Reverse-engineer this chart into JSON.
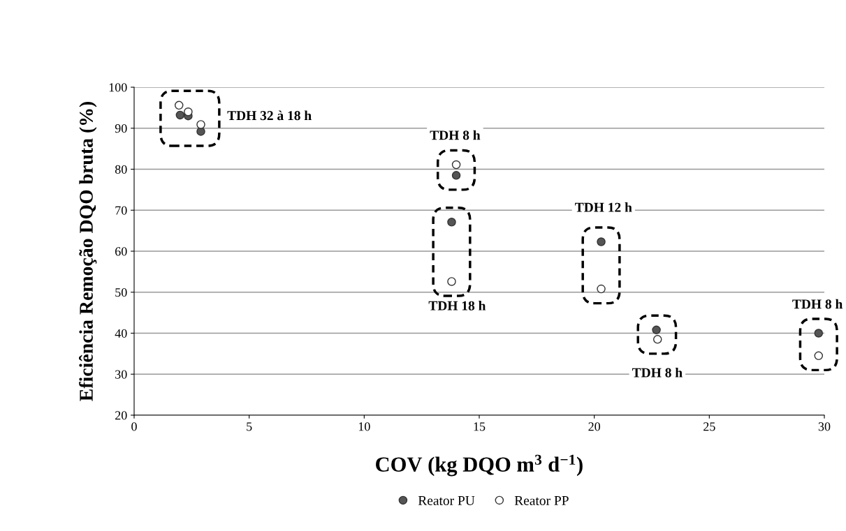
{
  "chart_data": {
    "type": "scatter",
    "xlabel": "COV (kg DQO m$^{3}$ d$^{−1}$)",
    "ylabel": "Eficiência Remoção DQO bruta (%)",
    "series": [
      {
        "name": "Reator PU",
        "color": "#555555",
        "x": [
          2.0,
          2.35,
          2.9,
          14.0,
          13.8,
          20.3,
          22.7,
          29.75
        ],
        "values": [
          93.2,
          93.0,
          89.2,
          78.5,
          67.1,
          62.3,
          40.8,
          40.0
        ]
      },
      {
        "name": "Reator PP",
        "color": "#ffffff",
        "x": [
          1.95,
          2.35,
          2.9,
          14.0,
          13.8,
          20.3,
          22.75,
          29.75
        ],
        "values": [
          95.6,
          94.0,
          90.9,
          81.1,
          52.6,
          50.8,
          38.5,
          34.5
        ]
      }
    ],
    "annotations": [
      "TDH 32 à 18 h",
      "TDH 8 h",
      "TDH 18 h",
      "TDH 12 h",
      "TDH 8 h",
      "TDH 8 h"
    ],
    "xlim": [
      0,
      30
    ],
    "xticks": [
      0,
      5,
      10,
      15,
      20,
      25,
      30
    ],
    "ylim": [
      20,
      100
    ],
    "yticks": [
      20,
      30,
      40,
      50,
      60,
      70,
      80,
      90,
      100
    ],
    "grid": "y",
    "legend": "bottom",
    "marker": "circle"
  }
}
